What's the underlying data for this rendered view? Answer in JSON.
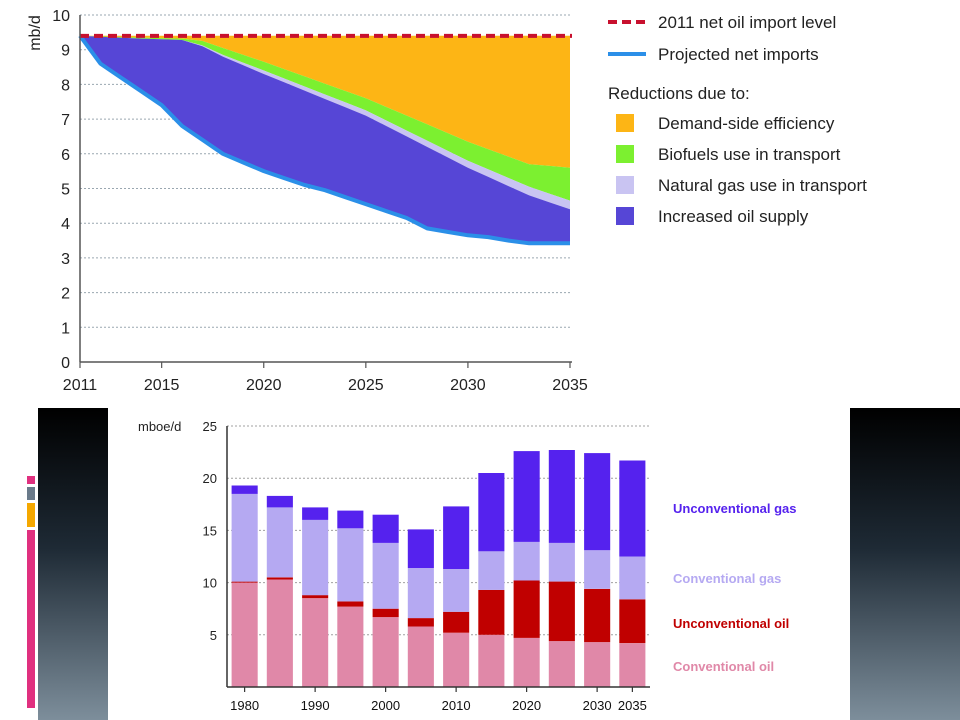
{
  "chart_data": [
    {
      "type": "area",
      "ylabel": "mb/d",
      "xlim": [
        2011,
        2035
      ],
      "ylim": [
        0,
        10
      ],
      "x_ticks": [
        2011,
        2015,
        2020,
        2025,
        2030,
        2035
      ],
      "y_ticks": [
        0,
        1,
        2,
        3,
        4,
        5,
        6,
        7,
        8,
        9,
        10
      ],
      "grid": "horizontal dotted",
      "legend_position": "right",
      "reference_line": {
        "name": "2011 net oil import level",
        "value": 9.4,
        "color": "#c8102e",
        "style": "dashed"
      },
      "legend_heading": "Reductions due to:",
      "series": [
        {
          "name": "Projected net imports",
          "color": "#2b8fe8",
          "x": [
            2011,
            2012,
            2013,
            2014,
            2015,
            2016,
            2017,
            2018,
            2019,
            2020,
            2021,
            2022,
            2023,
            2024,
            2025,
            2026,
            2027,
            2028,
            2029,
            2030,
            2031,
            2032,
            2033,
            2034,
            2035
          ],
          "values": [
            9.4,
            8.6,
            8.2,
            7.8,
            7.4,
            6.8,
            6.4,
            6.0,
            5.75,
            5.5,
            5.3,
            5.1,
            4.95,
            4.75,
            4.55,
            4.35,
            4.15,
            3.85,
            3.75,
            3.65,
            3.6,
            3.5,
            3.42,
            3.42,
            3.42
          ]
        },
        {
          "name": "Increased oil supply",
          "color": "#5646d6",
          "x": [
            2011,
            2014,
            2016,
            2017,
            2018,
            2020,
            2025,
            2030,
            2033,
            2035
          ],
          "values": [
            9.4,
            9.32,
            9.28,
            9.1,
            8.8,
            8.3,
            7.1,
            5.6,
            4.8,
            4.4
          ]
        },
        {
          "name": "Natural gas use in transport",
          "color": "#c9c4f2",
          "x": [
            2011,
            2014,
            2016,
            2017,
            2018,
            2020,
            2025,
            2030,
            2033,
            2035
          ],
          "values": [
            9.4,
            9.32,
            9.28,
            9.12,
            8.85,
            8.4,
            7.25,
            5.8,
            5.05,
            4.65
          ]
        },
        {
          "name": "Biofuels use in transport",
          "color": "#7cf030",
          "x": [
            2011,
            2014,
            2016,
            2017,
            2018,
            2020,
            2025,
            2030,
            2033,
            2035
          ],
          "values": [
            9.4,
            9.35,
            9.32,
            9.25,
            9.05,
            8.65,
            7.6,
            6.35,
            5.7,
            5.6
          ]
        },
        {
          "name": "Demand-side efficiency",
          "color": "#fdb515",
          "x": [
            2011,
            2035
          ],
          "values": [
            9.4,
            9.4
          ]
        }
      ]
    },
    {
      "type": "bar",
      "stacked": true,
      "ylabel": "mboe/d",
      "ylim": [
        0,
        25
      ],
      "y_ticks": [
        5,
        10,
        15,
        20,
        25
      ],
      "x_tick_labels": [
        "1980",
        "1990",
        "2000",
        "2010",
        "2020",
        "2030",
        "2035"
      ],
      "grid": "horizontal dotted",
      "categories": [
        "1980",
        "1985",
        "1990",
        "1995",
        "2000",
        "2005",
        "2010",
        "2015",
        "2020",
        "2025",
        "2030",
        "2035"
      ],
      "series": [
        {
          "name": "Conventional oil",
          "color": "#e088a8",
          "values": [
            10.0,
            10.3,
            8.5,
            7.7,
            6.7,
            5.8,
            5.2,
            5.0,
            4.7,
            4.4,
            4.3,
            4.2
          ]
        },
        {
          "name": "Unconventional oil",
          "color": "#c00000",
          "values": [
            0.1,
            0.2,
            0.3,
            0.5,
            0.8,
            0.8,
            2.0,
            4.3,
            5.5,
            5.7,
            5.1,
            4.2
          ]
        },
        {
          "name": "Conventional gas",
          "color": "#b5a9f2",
          "values": [
            8.4,
            6.7,
            7.2,
            7.0,
            6.3,
            4.8,
            4.1,
            3.7,
            3.7,
            3.7,
            3.7,
            4.1
          ]
        },
        {
          "name": "Unconventional gas",
          "color": "#5522ee",
          "values": [
            0.8,
            1.1,
            1.2,
            1.7,
            2.7,
            3.7,
            6.0,
            7.5,
            8.7,
            8.9,
            9.3,
            9.2
          ]
        }
      ]
    }
  ]
}
